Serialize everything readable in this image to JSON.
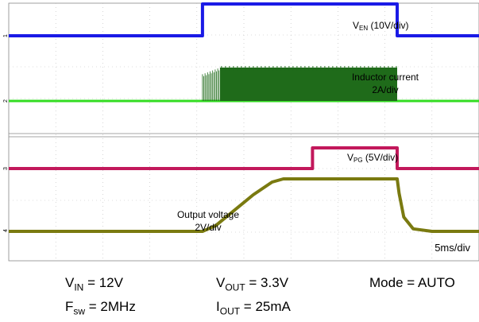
{
  "chart_data": {
    "type": "line",
    "x_axis": {
      "scale_label": "5ms/div",
      "unit": "ms",
      "ms_per_div": 5,
      "divisions": 10
    },
    "series": [
      {
        "name": "V_EN",
        "label_main": "V",
        "label_sub": "EN",
        "label_rest": " (10V/div)",
        "scale": "10V/div",
        "color": "#1a1ae6",
        "x": [
          0,
          20.6,
          20.6,
          41.3,
          41.3,
          50
        ],
        "y": [
          0,
          0,
          1,
          1,
          0,
          0
        ]
      },
      {
        "name": "Inductor current",
        "label_line1": "Inductor current",
        "label_line2": "2A/div",
        "scale": "2A/div",
        "color": "#1f6b1a",
        "baseline_color": "#33dd22",
        "burst_start_ms": 20.6,
        "burst_end_ms": 41.3,
        "baseline_div": 0,
        "peak_div": 1.05
      },
      {
        "name": "V_PG",
        "label_main": "V",
        "label_sub": "PG",
        "label_rest": " (5V/div)",
        "scale": "5V/div",
        "color": "#c2185b",
        "x": [
          0,
          32.3,
          32.3,
          41.3,
          41.3,
          50
        ],
        "y": [
          0,
          0,
          0.65,
          0.65,
          0,
          0
        ]
      },
      {
        "name": "Output voltage",
        "label_line1": "Output voltage",
        "label_line2": "2V/div",
        "scale": "2V/div",
        "color": "#7a7a10",
        "x": [
          0,
          20.6,
          22.0,
          26.0,
          28.0,
          29.2,
          31.0,
          41.3,
          41.5,
          42.0,
          43.0,
          45.0,
          50
        ],
        "y": [
          0,
          0,
          0.18,
          1.15,
          1.55,
          1.65,
          1.65,
          1.65,
          1.2,
          0.45,
          0.08,
          0,
          0
        ]
      }
    ],
    "grid": true
  },
  "conditions": {
    "vin": {
      "main": "V",
      "sub": "IN",
      "value": " = 12V"
    },
    "fsw": {
      "main": "F",
      "sub": "sw",
      "value": " = 2MHz"
    },
    "vout": {
      "main": "V",
      "sub": "OUT",
      "value": " = 3.3V"
    },
    "iout": {
      "main": "I",
      "sub": "OUT",
      "value": " = 25mA"
    },
    "mode": "Mode = AUTO"
  },
  "channel_markers": [
    "1",
    "2",
    "3",
    "4"
  ]
}
